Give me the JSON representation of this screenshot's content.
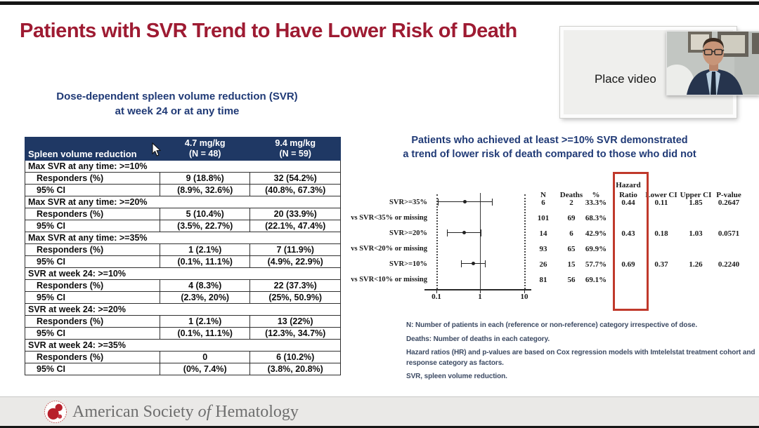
{
  "slide": {
    "title": "Patients with SVR Trend to Have Lower Risk of Death",
    "left_subtitle_line1": "Dose-dependent spleen volume reduction (SVR)",
    "left_subtitle_line2": "at week 24 or at any time",
    "right_heading_line1": "Patients who achieved at least >=10% SVR demonstrated",
    "right_heading_line2": "a trend of lower risk of death compared to those who did not"
  },
  "video": {
    "placeholder_label": "Place video"
  },
  "dose_table": {
    "header": {
      "col1": "Spleen volume reduction",
      "col2_line1": "4.7 mg/kg",
      "col2_line2": "(N = 48)",
      "col3_line1": "9.4 mg/kg",
      "col3_line2": "(N = 59)"
    },
    "sections": [
      {
        "title": "Max SVR at any time: >=10%",
        "rows": [
          [
            "Responders (%)",
            "9 (18.8%)",
            "32 (54.2%)"
          ],
          [
            "95% CI",
            "(8.9%, 32.6%)",
            "(40.8%, 67.3%)"
          ]
        ]
      },
      {
        "title": "Max SVR at any time: >=20%",
        "rows": [
          [
            "Responders (%)",
            "5 (10.4%)",
            "20 (33.9%)"
          ],
          [
            "95% CI",
            "(3.5%, 22.7%)",
            "(22.1%, 47.4%)"
          ]
        ]
      },
      {
        "title": "Max SVR at any time: >=35%",
        "rows": [
          [
            "Responders (%)",
            "1 (2.1%)",
            "7 (11.9%)"
          ],
          [
            "95% CI",
            "(0.1%, 11.1%)",
            "(4.9%, 22.9%)"
          ]
        ]
      },
      {
        "title": "SVR at week 24: >=10%",
        "rows": [
          [
            "Responders (%)",
            "4 (8.3%)",
            "22 (37.3%)"
          ],
          [
            "95% CI",
            "(2.3%, 20%)",
            "(25%, 50.9%)"
          ]
        ]
      },
      {
        "title": "SVR at week 24: >=20%",
        "rows": [
          [
            "Responders (%)",
            "1 (2.1%)",
            "13 (22%)"
          ],
          [
            "95% CI",
            "(0.1%, 11.1%)",
            "(12.3%, 34.7%)"
          ]
        ]
      },
      {
        "title": "SVR at week 24: >=35%",
        "rows": [
          [
            "Responders (%)",
            "0",
            "6 (10.2%)"
          ],
          [
            "95% CI",
            "(0%, 7.4%)",
            "(3.8%, 20.8%)"
          ]
        ]
      }
    ]
  },
  "forest_plot": {
    "columns": {
      "n": "N",
      "deaths": "Deaths",
      "pct": "%",
      "hr_line1": "Hazard",
      "hr_line2": "Ratio",
      "lower": "Lower CI",
      "upper": "Upper CI",
      "p": "P-value"
    },
    "ticks": [
      "0.1",
      "1",
      "10"
    ],
    "rows": [
      {
        "label": "SVR>=35%",
        "n": "6",
        "deaths": "2",
        "pct": "33.3%",
        "hr": "0.44",
        "lower": "0.11",
        "upper": "1.85",
        "p": "0.2647"
      },
      {
        "label": "vs SVR<35% or missing",
        "n": "101",
        "deaths": "69",
        "pct": "68.3%"
      },
      {
        "label": "SVR>=20%",
        "n": "14",
        "deaths": "6",
        "pct": "42.9%",
        "hr": "0.43",
        "lower": "0.18",
        "upper": "1.03",
        "p": "0.0571"
      },
      {
        "label": "vs SVR<20% or missing",
        "n": "93",
        "deaths": "65",
        "pct": "69.9%"
      },
      {
        "label": "SVR>=10%",
        "n": "26",
        "deaths": "15",
        "pct": "57.7%",
        "hr": "0.69",
        "lower": "0.37",
        "upper": "1.26",
        "p": "0.2240"
      },
      {
        "label": "vs SVR<10% or missing",
        "n": "81",
        "deaths": "56",
        "pct": "69.1%"
      }
    ]
  },
  "chart_data": {
    "type": "scatter",
    "title": "Forest plot: hazard ratio of death by SVR response category",
    "x_scale": "log10",
    "xlim": [
      0.1,
      10
    ],
    "x_ticks": [
      0.1,
      1,
      10
    ],
    "reference_line": 1,
    "series": [
      {
        "name": "SVR>=35% vs SVR<35% or missing",
        "hr": 0.44,
        "ci": [
          0.11,
          1.85
        ],
        "p": 0.2647,
        "n": 6,
        "deaths": 2,
        "pct": 33.3,
        "ref_n": 101,
        "ref_deaths": 69,
        "ref_pct": 68.3
      },
      {
        "name": "SVR>=20% vs SVR<20% or missing",
        "hr": 0.43,
        "ci": [
          0.18,
          1.03
        ],
        "p": 0.0571,
        "n": 14,
        "deaths": 6,
        "pct": 42.9,
        "ref_n": 93,
        "ref_deaths": 65,
        "ref_pct": 69.9
      },
      {
        "name": "SVR>=10% vs SVR<10% or missing",
        "hr": 0.69,
        "ci": [
          0.37,
          1.26
        ],
        "p": 0.224,
        "n": 26,
        "deaths": 15,
        "pct": 57.7,
        "ref_n": 81,
        "ref_deaths": 56,
        "ref_pct": 69.1
      }
    ]
  },
  "footnotes": [
    "N: Number of patients in each (reference or non-reference) category irrespective of dose.",
    "Deaths: Number of deaths in each category.",
    "Hazard ratios (HR) and p-values are based on Cox regression models with Imtelelstat treatment cohort and response category as factors.",
    "SVR, spleen volume reduction."
  ],
  "footer": {
    "org_pre": "American Society ",
    "org_of": "of",
    "org_post": " Hematology"
  }
}
